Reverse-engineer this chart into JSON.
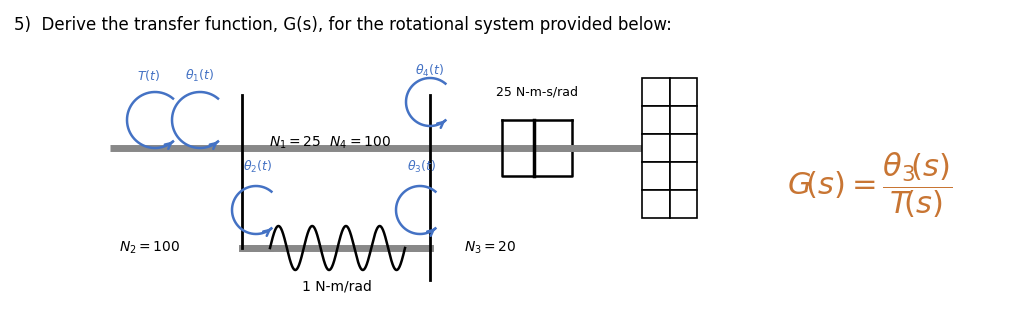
{
  "title": "5)  Derive the transfer function, G(s), for the rotational system provided below:",
  "title_color": "#000000",
  "title_fontsize": 12,
  "bg_color": "#ffffff",
  "diagram_color": "#000000",
  "blue_color": "#4472C4",
  "shaft_color": "#888888",
  "label_damper": "25 N-m-s/rad",
  "label_spring": "1 N-m/rad"
}
